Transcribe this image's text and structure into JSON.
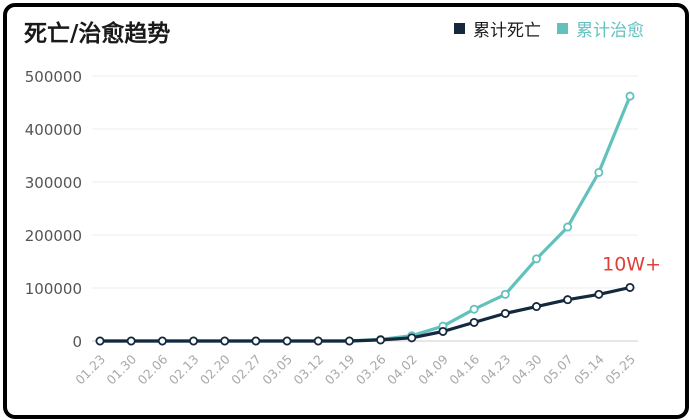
{
  "chart_data": {
    "type": "line",
    "title": "死亡/治愈趋势",
    "xlabel": "",
    "ylabel": "",
    "ylim": [
      0,
      500000
    ],
    "yticks": [
      0,
      100000,
      200000,
      300000,
      400000,
      500000
    ],
    "ytick_labels": [
      "0",
      "100000",
      "200000",
      "300000",
      "400000",
      "500000"
    ],
    "categories": [
      "01.23",
      "01.30",
      "02.06",
      "02.13",
      "02.20",
      "02.27",
      "03.05",
      "03.12",
      "03.19",
      "03.26",
      "04.02",
      "04.09",
      "04.16",
      "04.23",
      "04.30",
      "05.07",
      "05.14",
      "05.25"
    ],
    "grid": true,
    "legend_position": "top-right",
    "annotation": {
      "text": "10W+",
      "color": "#e0403a"
    },
    "series": [
      {
        "name": "累计死亡",
        "color": "#15283d",
        "values": [
          0,
          0,
          0,
          0,
          0,
          0,
          0,
          0,
          0,
          2000,
          6000,
          18000,
          35000,
          52000,
          65000,
          78000,
          88000,
          101000
        ]
      },
      {
        "name": "累计治愈",
        "color": "#63c1bd",
        "values": [
          0,
          0,
          0,
          0,
          0,
          0,
          0,
          0,
          0,
          3000,
          10000,
          28000,
          60000,
          88000,
          155000,
          215000,
          318000,
          462000
        ]
      }
    ]
  }
}
